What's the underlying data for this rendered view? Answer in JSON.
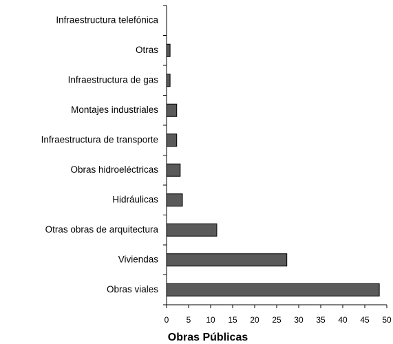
{
  "chart_data": {
    "type": "barh",
    "x_label": "Obras Públicas",
    "categories": [
      "Infraestructura telefónica",
      "Otras",
      "Infraestructura de gas",
      "Montajes industriales",
      "Infraestructura de transporte",
      "Obras hidroeléctricas",
      "Hidráulicas",
      "Otras obras de arquitectura",
      "Viviendas",
      "Obras viales"
    ],
    "values": [
      0,
      0.8,
      0.8,
      2.3,
      2.3,
      3.1,
      3.6,
      11.4,
      27.3,
      48.3
    ],
    "color": "#5a5a5a",
    "xlim": [
      0,
      50
    ],
    "xticks": [
      0,
      5,
      10,
      15,
      20,
      25,
      30,
      35,
      40,
      45,
      50
    ]
  }
}
